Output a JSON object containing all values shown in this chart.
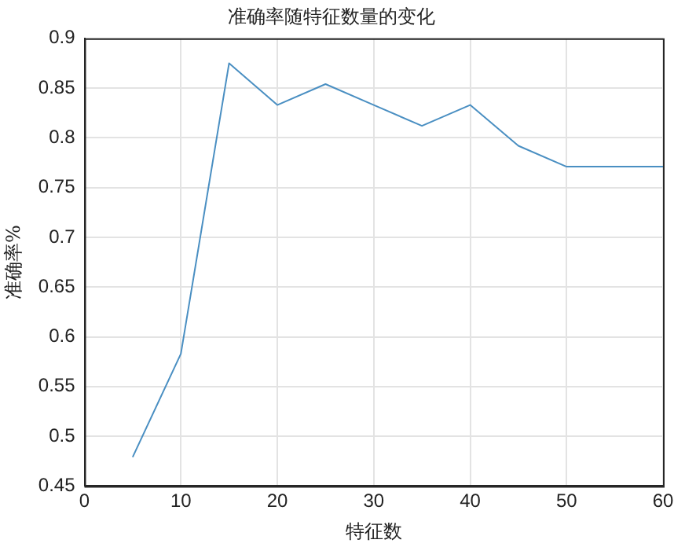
{
  "chart_data": {
    "type": "line",
    "title": "准确率随特征数量的变化",
    "xlabel": "特征数",
    "ylabel": "准确率%",
    "x": [
      5,
      10,
      15,
      20,
      25,
      30,
      35,
      40,
      45,
      50,
      55,
      60
    ],
    "series": [
      {
        "color": "#4a8fc2",
        "values": [
          0.479,
          0.583,
          0.875,
          0.833,
          0.854,
          0.833,
          0.812,
          0.833,
          0.792,
          0.771,
          0.771,
          0.771
        ]
      }
    ],
    "xlim": [
      0,
      60
    ],
    "xticks": [
      0,
      10,
      20,
      30,
      40,
      50,
      60
    ],
    "ylim": [
      0.45,
      0.9
    ],
    "yticks": [
      0.45,
      0.5,
      0.55,
      0.6,
      0.65,
      0.7,
      0.75,
      0.8,
      0.85,
      0.9
    ],
    "grid": true,
    "legend": false,
    "marker": "none",
    "line_style": "solid"
  }
}
